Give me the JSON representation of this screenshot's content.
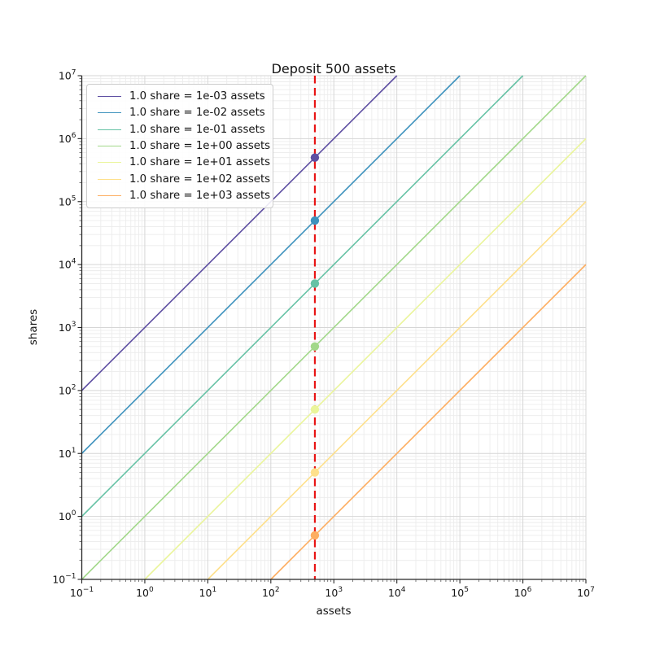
{
  "chart_data": {
    "type": "line",
    "title": "Deposit 500 assets",
    "xlabel": "assets",
    "ylabel": "shares",
    "xscale": "log",
    "yscale": "log",
    "xlim": [
      0.1,
      10000000
    ],
    "ylim": [
      0.1,
      10000000
    ],
    "x_tick_exponents": [
      -1,
      0,
      1,
      2,
      3,
      4,
      5,
      6,
      7
    ],
    "y_tick_exponents": [
      -1,
      0,
      1,
      2,
      3,
      4,
      5,
      6,
      7
    ],
    "grid": "major+minor",
    "legend_position": "upper left",
    "deposit_assets": 500,
    "vline": {
      "x": 500,
      "color": "#e81414",
      "style": "dashed"
    },
    "series": [
      {
        "label": "1.0 share = 1e-03 assets",
        "assets_per_share": 0.001,
        "color": "#5e4fa2",
        "marker": "circle",
        "point": {
          "assets": 500,
          "shares": 500000
        }
      },
      {
        "label": "1.0 share = 1e-02 assets",
        "assets_per_share": 0.01,
        "color": "#3e92bd",
        "marker": "circle",
        "point": {
          "assets": 500,
          "shares": 50000
        }
      },
      {
        "label": "1.0 share = 1e-01 assets",
        "assets_per_share": 0.1,
        "color": "#66c2a5",
        "marker": "circle",
        "point": {
          "assets": 500,
          "shares": 5000
        }
      },
      {
        "label": "1.0 share = 1e+00 assets",
        "assets_per_share": 1.0,
        "color": "#a2d88a",
        "marker": "circle",
        "point": {
          "assets": 500,
          "shares": 500
        }
      },
      {
        "label": "1.0 share = 1e+01 assets",
        "assets_per_share": 10.0,
        "color": "#eaf59b",
        "marker": "circle",
        "point": {
          "assets": 500,
          "shares": 50
        }
      },
      {
        "label": "1.0 share = 1e+02 assets",
        "assets_per_share": 100.0,
        "color": "#fee08b",
        "marker": "circle",
        "point": {
          "assets": 500,
          "shares": 5
        }
      },
      {
        "label": "1.0 share = 1e+03 assets",
        "assets_per_share": 1000.0,
        "color": "#fdae61",
        "marker": "circle",
        "point": {
          "assets": 500,
          "shares": 0.5
        }
      }
    ]
  }
}
